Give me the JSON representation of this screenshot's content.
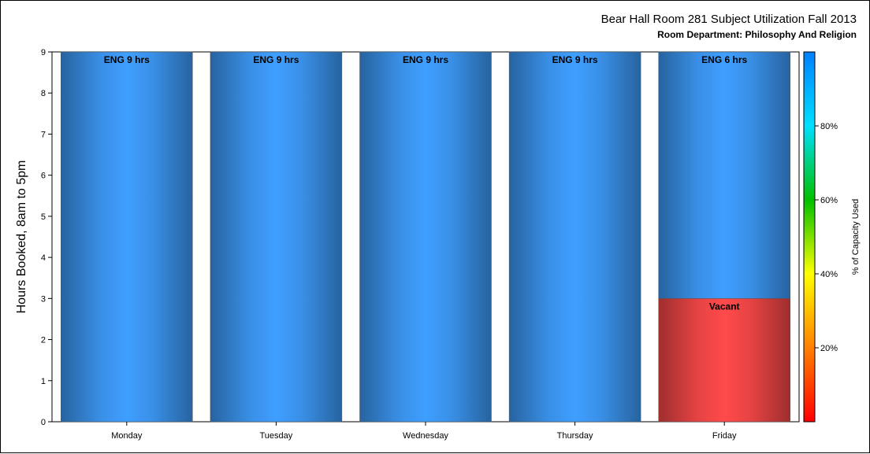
{
  "chart_data": {
    "type": "bar",
    "title": "Bear Hall Room 281 Subject Utilization Fall 2013",
    "subtitle": "Room Department:  Philosophy And Religion",
    "ylabel": "Hours Booked, 8am to 5pm",
    "ylim": [
      0,
      9
    ],
    "yticks": [
      "0",
      "1",
      "2",
      "3",
      "4",
      "5",
      "6",
      "7",
      "8",
      "9"
    ],
    "categories": [
      "Monday",
      "Tuesday",
      "Wednesday",
      "Thursday",
      "Friday"
    ],
    "stacked": true,
    "bars": [
      {
        "category": "Monday",
        "segments": [
          {
            "label": "ENG 9 hrs",
            "value": 9,
            "color": "#3f9fff"
          }
        ]
      },
      {
        "category": "Tuesday",
        "segments": [
          {
            "label": "ENG 9 hrs",
            "value": 9,
            "color": "#3f9fff"
          }
        ]
      },
      {
        "category": "Wednesday",
        "segments": [
          {
            "label": "ENG 9 hrs",
            "value": 9,
            "color": "#3f9fff"
          }
        ]
      },
      {
        "category": "Thursday",
        "segments": [
          {
            "label": "ENG 9 hrs",
            "value": 9,
            "color": "#3f9fff"
          }
        ]
      },
      {
        "category": "Friday",
        "segments": [
          {
            "label": "Vacant",
            "value": 3,
            "color": "#ff4a4a"
          },
          {
            "label": "ENG 6 hrs",
            "value": 6,
            "color": "#3f9fff"
          }
        ]
      }
    ],
    "colorbar": {
      "label": "% of Capacity Used",
      "ticks": [
        "20%",
        "40%",
        "60%",
        "80%"
      ],
      "tick_values": [
        20,
        40,
        60,
        80
      ],
      "range": [
        0,
        100
      ],
      "colors": [
        "#ff0000",
        "#ff8000",
        "#ffff00",
        "#00c000",
        "#00e0ff",
        "#0080ff"
      ]
    },
    "grid": false
  }
}
